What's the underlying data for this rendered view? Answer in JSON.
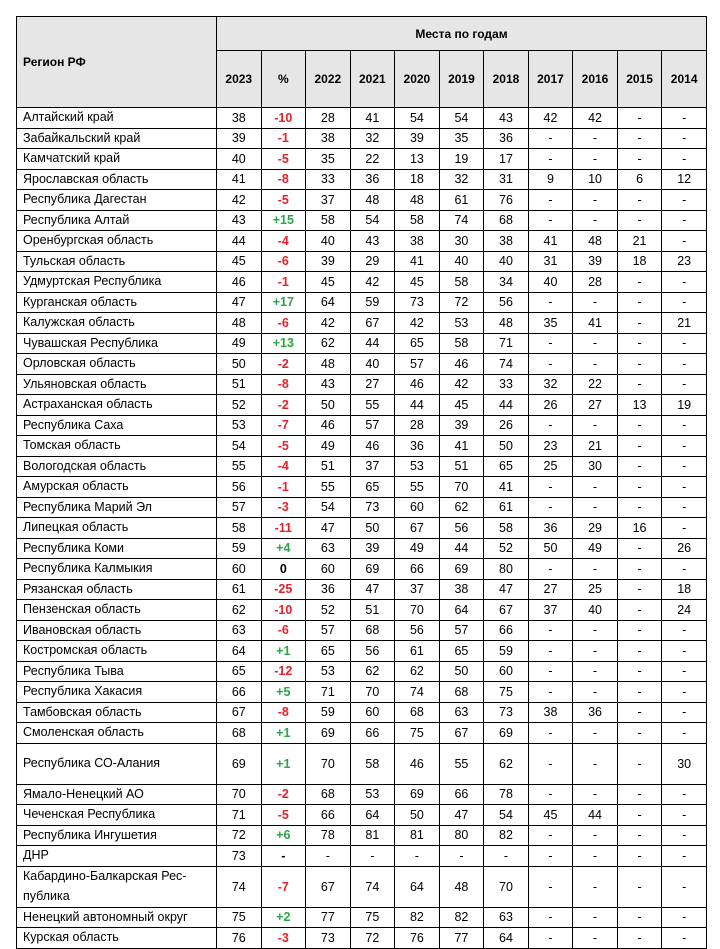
{
  "header": {
    "region": "Регион РФ",
    "group": "Места по годам",
    "years": [
      "2023",
      "%",
      "2022",
      "2021",
      "2020",
      "2019",
      "2018",
      "2017",
      "2016",
      "2015",
      "2014"
    ]
  },
  "colors": {
    "negative": "#e8202a",
    "positive": "#2aa745",
    "header_bg": "#e6e6e6"
  },
  "rows": [
    [
      "Алтайский край",
      "38",
      "-10",
      "28",
      "41",
      "54",
      "54",
      "43",
      "42",
      "42",
      "-",
      "-"
    ],
    [
      "Забайкальский край",
      "39",
      "-1",
      "38",
      "32",
      "39",
      "35",
      "36",
      "-",
      "-",
      "-",
      "-"
    ],
    [
      "Камчатский край",
      "40",
      "-5",
      "35",
      "22",
      "13",
      "19",
      "17",
      "-",
      "-",
      "-",
      "-"
    ],
    [
      "Ярославская область",
      "41",
      "-8",
      "33",
      "36",
      "18",
      "32",
      "31",
      "9",
      "10",
      "6",
      "12"
    ],
    [
      "Республика Дагестан",
      "42",
      "-5",
      "37",
      "48",
      "48",
      "61",
      "76",
      "-",
      "-",
      "-",
      "-"
    ],
    [
      "Республика Алтай",
      "43",
      "+15",
      "58",
      "54",
      "58",
      "74",
      "68",
      "-",
      "-",
      "-",
      "-"
    ],
    [
      "Оренбургская область",
      "44",
      "-4",
      "40",
      "43",
      "38",
      "30",
      "38",
      "41",
      "48",
      "21",
      "-"
    ],
    [
      "Тульская область",
      "45",
      "-6",
      "39",
      "29",
      "41",
      "40",
      "40",
      "31",
      "39",
      "18",
      "23"
    ],
    [
      "Удмуртская Республика",
      "46",
      "-1",
      "45",
      "42",
      "45",
      "58",
      "34",
      "40",
      "28",
      "-",
      "-"
    ],
    [
      "Курганская область",
      "47",
      "+17",
      "64",
      "59",
      "73",
      "72",
      "56",
      "-",
      "-",
      "-",
      "-"
    ],
    [
      "Калужская область",
      "48",
      "-6",
      "42",
      "67",
      "42",
      "53",
      "48",
      "35",
      "41",
      "-",
      "21"
    ],
    [
      "Чувашская Республика",
      "49",
      "+13",
      "62",
      "44",
      "65",
      "58",
      "71",
      "-",
      "-",
      "-",
      "-"
    ],
    [
      "Орловская область",
      "50",
      "-2",
      "48",
      "40",
      "57",
      "46",
      "74",
      "-",
      "-",
      "-",
      "-"
    ],
    [
      "Ульяновская область",
      "51",
      "-8",
      "43",
      "27",
      "46",
      "42",
      "33",
      "32",
      "22",
      "-",
      "-"
    ],
    [
      "Астраханская область",
      "52",
      "-2",
      "50",
      "55",
      "44",
      "45",
      "44",
      "26",
      "27",
      "13",
      "19"
    ],
    [
      "Республика Саха",
      "53",
      "-7",
      "46",
      "57",
      "28",
      "39",
      "26",
      "-",
      "-",
      "-",
      "-"
    ],
    [
      "Томская область",
      "54",
      "-5",
      "49",
      "46",
      "36",
      "41",
      "50",
      "23",
      "21",
      "-",
      "-"
    ],
    [
      "Вологодская область",
      "55",
      "-4",
      "51",
      "37",
      "53",
      "51",
      "65",
      "25",
      "30",
      "-",
      "-"
    ],
    [
      "Амурская область",
      "56",
      "-1",
      "55",
      "65",
      "55",
      "70",
      "41",
      "-",
      "-",
      "-",
      "-"
    ],
    [
      "Республика Марий Эл",
      "57",
      "-3",
      "54",
      "73",
      "60",
      "62",
      "61",
      "-",
      "-",
      "-",
      "-"
    ],
    [
      "Липецкая область",
      "58",
      "-11",
      "47",
      "50",
      "67",
      "56",
      "58",
      "36",
      "29",
      "16",
      "-"
    ],
    [
      "Республика Коми",
      "59",
      "+4",
      "63",
      "39",
      "49",
      "44",
      "52",
      "50",
      "49",
      "-",
      "26"
    ],
    [
      "Республика Калмыкия",
      "60",
      "0",
      "60",
      "69",
      "66",
      "69",
      "80",
      "-",
      "-",
      "-",
      "-"
    ],
    [
      "Рязанская область",
      "61",
      "-25",
      "36",
      "47",
      "37",
      "38",
      "47",
      "27",
      "25",
      "-",
      "18"
    ],
    [
      "Пензенская область",
      "62",
      "-10",
      "52",
      "51",
      "70",
      "64",
      "67",
      "37",
      "40",
      "-",
      "24"
    ],
    [
      "Ивановская область",
      "63",
      "-6",
      "57",
      "68",
      "56",
      "57",
      "66",
      "-",
      "-",
      "-",
      "-"
    ],
    [
      "Костромская область",
      "64",
      "+1",
      "65",
      "56",
      "61",
      "65",
      "59",
      "-",
      "-",
      "-",
      "-"
    ],
    [
      "Республика Тыва",
      "65",
      "-12",
      "53",
      "62",
      "62",
      "50",
      "60",
      "-",
      "-",
      "-",
      "-"
    ],
    [
      "Республика Хакасия",
      "66",
      "+5",
      "71",
      "70",
      "74",
      "68",
      "75",
      "-",
      "-",
      "-",
      "-"
    ],
    [
      "Тамбовская область",
      "67",
      "-8",
      "59",
      "60",
      "68",
      "63",
      "73",
      "38",
      "36",
      "-",
      "-"
    ],
    [
      "Смоленская область",
      "68",
      "+1",
      "69",
      "66",
      "75",
      "67",
      "69",
      "-",
      "-",
      "-",
      "-"
    ],
    [
      "Республика СО-Алания",
      "69",
      "+1",
      "70",
      "58",
      "46",
      "55",
      "62",
      "-",
      "-",
      "-",
      "30"
    ],
    [
      "Ямало-Ненецкий АО",
      "70",
      "-2",
      "68",
      "53",
      "69",
      "66",
      "78",
      "-",
      "-",
      "-",
      "-"
    ],
    [
      "Чеченская Республика",
      "71",
      "-5",
      "66",
      "64",
      "50",
      "47",
      "54",
      "45",
      "44",
      "-",
      "-"
    ],
    [
      "Республика Ингушетия",
      "72",
      "+6",
      "78",
      "81",
      "81",
      "80",
      "82",
      "-",
      "-",
      "-",
      "-"
    ],
    [
      "ДНР",
      "73",
      "-",
      "-",
      "-",
      "-",
      "-",
      "-",
      "-",
      "-",
      "-",
      "-"
    ],
    [
      "Кабардино-Балкарская Рес-публика",
      "74",
      "-7",
      "67",
      "74",
      "64",
      "48",
      "70",
      "-",
      "-",
      "-",
      "-"
    ],
    [
      "Ненецкий автономный округ",
      "75",
      "+2",
      "77",
      "75",
      "82",
      "82",
      "63",
      "-",
      "-",
      "-",
      "-"
    ],
    [
      "Курская область",
      "76",
      "-3",
      "73",
      "72",
      "76",
      "77",
      "64",
      "-",
      "-",
      "-",
      "-"
    ]
  ]
}
